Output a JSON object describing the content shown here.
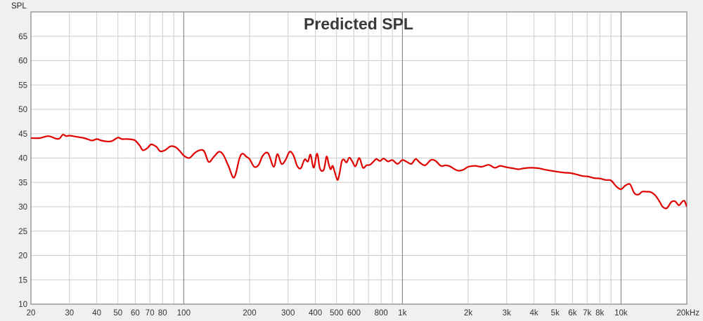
{
  "chart_data": {
    "type": "line",
    "title": "Predicted SPL",
    "ylabel": "SPL",
    "xlabel": "",
    "x_scale": "log",
    "xlim": [
      20,
      20000
    ],
    "ylim": [
      10,
      70
    ],
    "grid": true,
    "y_ticks": [
      "10",
      "15",
      "20",
      "25",
      "30",
      "35",
      "40",
      "45",
      "50",
      "55",
      "60",
      "65"
    ],
    "x_ticks": [
      {
        "value": 20,
        "label": "20"
      },
      {
        "value": 30,
        "label": "30"
      },
      {
        "value": 40,
        "label": "40"
      },
      {
        "value": 50,
        "label": "50"
      },
      {
        "value": 60,
        "label": "60"
      },
      {
        "value": 70,
        "label": "70"
      },
      {
        "value": 80,
        "label": "80"
      },
      {
        "value": 100,
        "label": "100"
      },
      {
        "value": 200,
        "label": "200"
      },
      {
        "value": 300,
        "label": "300"
      },
      {
        "value": 400,
        "label": "400"
      },
      {
        "value": 500,
        "label": "500"
      },
      {
        "value": 600,
        "label": "600"
      },
      {
        "value": 800,
        "label": "800"
      },
      {
        "value": 1000,
        "label": "1k"
      },
      {
        "value": 2000,
        "label": "2k"
      },
      {
        "value": 3000,
        "label": "3k"
      },
      {
        "value": 4000,
        "label": "4k"
      },
      {
        "value": 5000,
        "label": "5k"
      },
      {
        "value": 6000,
        "label": "6k"
      },
      {
        "value": 7000,
        "label": "7k"
      },
      {
        "value": 8000,
        "label": "8k"
      },
      {
        "value": 10000,
        "label": "10k"
      },
      {
        "value": 20000,
        "label": "20kHz"
      }
    ],
    "colors": {
      "line": "#e00000",
      "plot_bg": "#ffffff",
      "frame": "#9a9a9a",
      "grid_minor": "#cdcdcd",
      "grid_major": "#777777"
    },
    "series": [
      {
        "x": [
          20,
          22,
          24,
          26,
          27,
          28,
          29,
          30,
          32,
          35,
          38,
          40,
          42,
          45,
          47,
          50,
          52,
          55,
          58,
          60,
          63,
          65,
          68,
          71,
          75,
          78,
          82,
          87,
          92,
          97,
          100,
          106,
          112,
          118,
          124,
          130,
          137,
          145,
          152,
          160,
          170,
          180,
          186,
          193,
          200,
          210,
          220,
          230,
          243,
          258,
          268,
          280,
          292,
          305,
          318,
          330,
          343,
          357,
          370,
          380,
          393,
          407,
          420,
          437,
          450,
          460,
          470,
          480,
          492,
          505,
          515,
          528,
          540,
          555,
          572,
          590,
          610,
          635,
          660,
          685,
          710,
          735,
          760,
          790,
          820,
          860,
          900,
          950,
          1000,
          1050,
          1100,
          1150,
          1200,
          1270,
          1350,
          1420,
          1500,
          1580,
          1650,
          1720,
          1800,
          1900,
          2000,
          2150,
          2300,
          2480,
          2650,
          2800,
          3000,
          3200,
          3400,
          3600,
          3900,
          4200,
          4500,
          4800,
          5100,
          5500,
          5900,
          6300,
          6700,
          7100,
          7500,
          8000,
          8500,
          9000,
          9500,
          10000,
          10500,
          11000,
          11500,
          12000,
          12500,
          13000,
          13700,
          14300,
          15000,
          15500,
          16200,
          17000,
          17700,
          18400,
          19000,
          19500,
          20000
        ],
        "values": [
          44.1,
          44.1,
          44.5,
          44.0,
          44.0,
          44.8,
          44.5,
          44.6,
          44.4,
          44.1,
          43.6,
          43.9,
          43.6,
          43.4,
          43.5,
          44.2,
          43.9,
          43.9,
          43.8,
          43.6,
          42.5,
          41.6,
          42.0,
          42.8,
          42.3,
          41.4,
          41.6,
          42.4,
          42.2,
          41.2,
          40.5,
          40.0,
          41.0,
          41.6,
          41.4,
          39.2,
          40.2,
          41.3,
          40.6,
          38.4,
          36.0,
          40.0,
          40.9,
          40.3,
          39.8,
          38.2,
          38.6,
          40.5,
          41.0,
          38.2,
          40.8,
          38.8,
          39.6,
          41.3,
          40.5,
          38.4,
          37.9,
          39.7,
          39.3,
          40.7,
          38.0,
          40.9,
          37.8,
          37.6,
          40.3,
          38.8,
          37.7,
          38.4,
          36.9,
          35.5,
          36.7,
          39.3,
          39.7,
          39.1,
          40.1,
          39.3,
          38.3,
          40.0,
          38.0,
          38.5,
          38.6,
          39.2,
          39.8,
          39.4,
          39.9,
          39.3,
          39.6,
          38.8,
          39.6,
          39.2,
          38.8,
          39.8,
          39.1,
          38.5,
          39.6,
          39.4,
          38.4,
          38.5,
          38.3,
          37.8,
          37.4,
          37.6,
          38.2,
          38.4,
          38.2,
          38.6,
          38.0,
          38.4,
          38.1,
          37.9,
          37.7,
          37.9,
          38.0,
          37.9,
          37.6,
          37.4,
          37.2,
          37.0,
          36.9,
          36.6,
          36.3,
          36.2,
          35.9,
          35.8,
          35.5,
          35.4,
          34.2,
          33.6,
          34.4,
          34.6,
          32.8,
          32.5,
          33.1,
          33.1,
          33.0,
          32.4,
          31.1,
          30.0,
          29.7,
          31.0,
          31.1,
          30.3,
          31.0,
          31.2,
          30.0
        ]
      }
    ]
  }
}
